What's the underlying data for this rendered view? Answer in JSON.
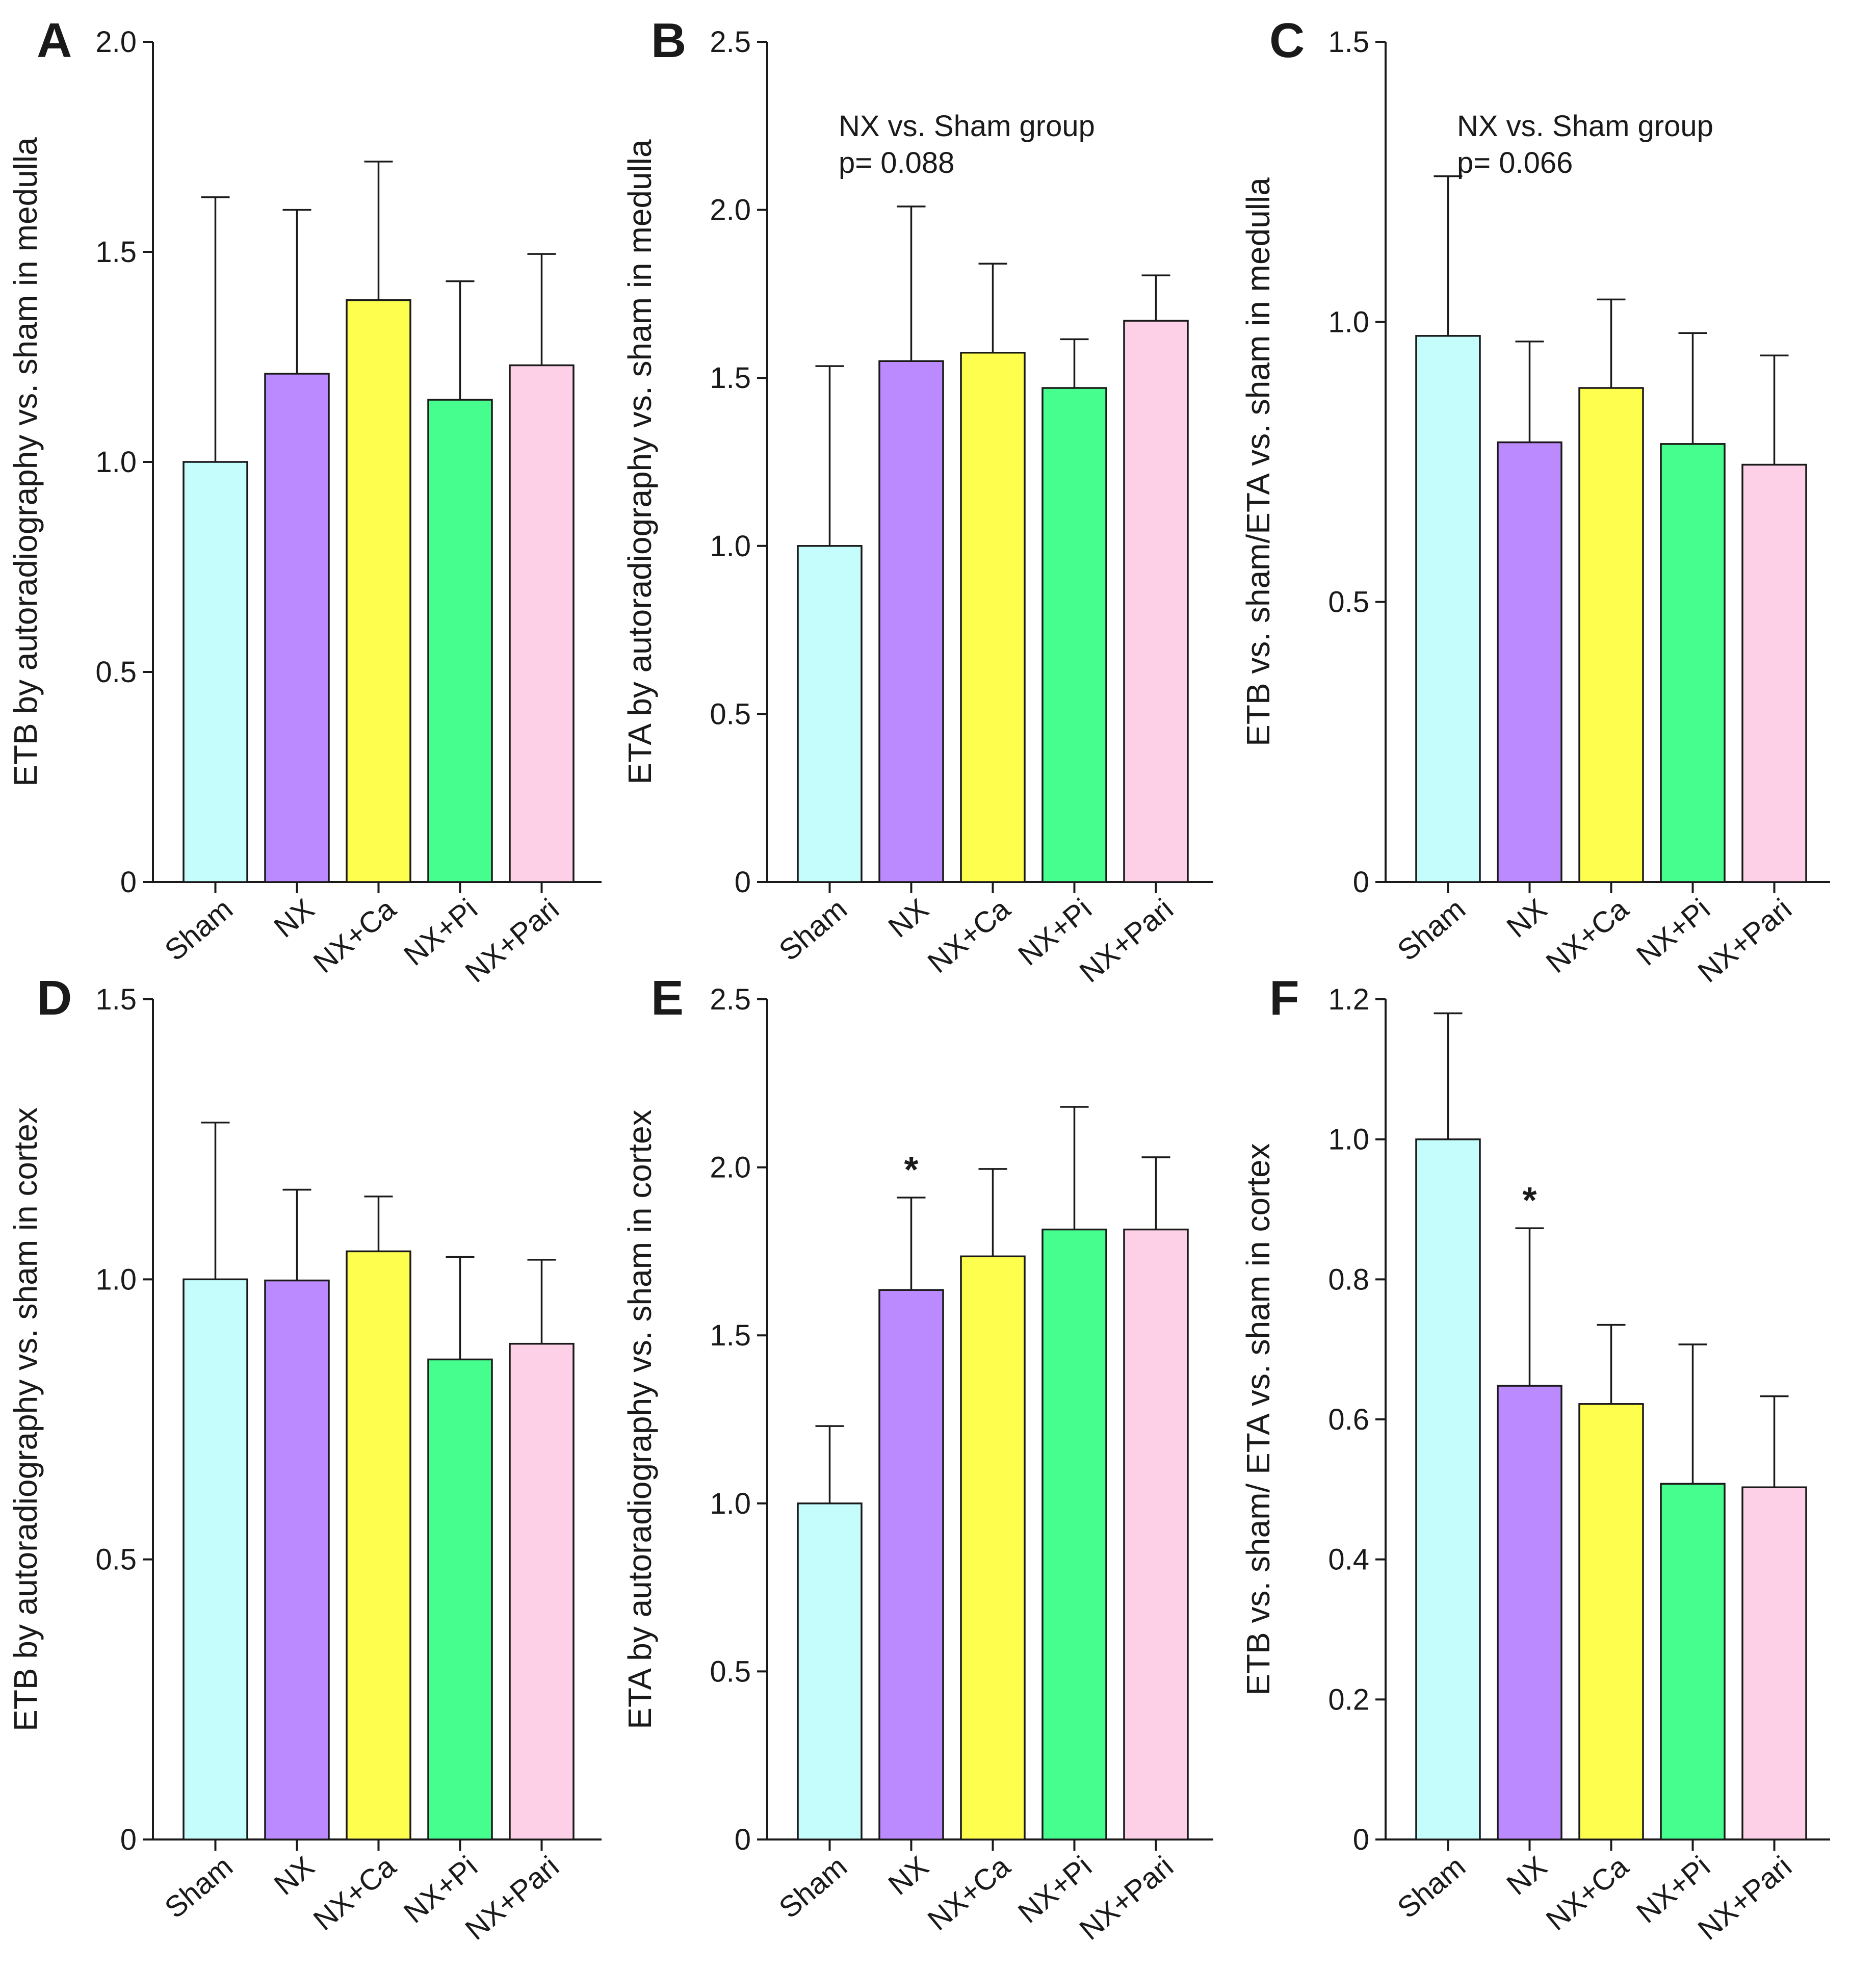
{
  "colors": {
    "Sham": "#c4fdfc",
    "NX": "#bb8afe",
    "NX+Ca": "#fefe4f",
    "NX+Pi": "#45fe8e",
    "NX+Pari": "#fed0e7",
    "axis": "#1a1a1a"
  },
  "chart_data": [
    {
      "id": "A",
      "panel_label": "A",
      "type": "bar",
      "categories": [
        "Sham",
        "NX",
        "NX+Ca",
        "NX+Pi",
        "NX+Pari"
      ],
      "values": [
        1.0,
        1.21,
        1.385,
        1.148,
        1.23
      ],
      "error_upper": [
        1.63,
        1.6,
        1.715,
        1.43,
        1.495
      ],
      "ylabel": "ETB by autoradiography vs. sham in medulla",
      "ylim": [
        0,
        2.0
      ],
      "yticks": [
        0,
        0.5,
        1.0,
        1.5,
        2.0
      ],
      "ytick_labels": [
        "0",
        "0.5",
        "1.0",
        "1.5",
        "2.0"
      ],
      "annotations": [],
      "stars": []
    },
    {
      "id": "B",
      "panel_label": "B",
      "type": "bar",
      "categories": [
        "Sham",
        "NX",
        "NX+Ca",
        "NX+Pi",
        "NX+Pari"
      ],
      "values": [
        1.0,
        1.55,
        1.575,
        1.47,
        1.67
      ],
      "error_upper": [
        1.535,
        2.01,
        1.84,
        1.615,
        1.805
      ],
      "ylabel": "ETA by autoradiography vs. sham in medulla",
      "ylim": [
        0,
        2.5
      ],
      "yticks": [
        0,
        0.5,
        1.0,
        1.5,
        2.0,
        2.5
      ],
      "ytick_labels": [
        "0",
        "0.5",
        "1.0",
        "1.5",
        "2.0",
        "2.5"
      ],
      "annotations": [
        "NX vs. Sham group",
        "p= 0.088"
      ],
      "stars": []
    },
    {
      "id": "C",
      "panel_label": "C",
      "type": "bar",
      "categories": [
        "Sham",
        "NX",
        "NX+Ca",
        "NX+Pi",
        "NX+Pari"
      ],
      "values": [
        0.975,
        0.785,
        0.882,
        0.782,
        0.745
      ],
      "error_upper": [
        1.26,
        0.965,
        1.04,
        0.98,
        0.94
      ],
      "ylabel": "ETB vs. sham/ETA vs. sham in medulla",
      "ylim": [
        0,
        1.5
      ],
      "yticks": [
        0,
        0.5,
        1.0,
        1.5
      ],
      "ytick_labels": [
        "0",
        "0.5",
        "1.0",
        "1.5"
      ],
      "annotations": [
        "NX vs. Sham group",
        "p= 0.066"
      ],
      "stars": []
    },
    {
      "id": "D",
      "panel_label": "D",
      "type": "bar",
      "categories": [
        "Sham",
        "NX",
        "NX+Ca",
        "NX+Pi",
        "NX+Pari"
      ],
      "values": [
        1.0,
        0.998,
        1.05,
        0.857,
        0.885
      ],
      "error_upper": [
        1.28,
        1.16,
        1.148,
        1.04,
        1.035
      ],
      "ylabel": "ETB by autoradiography vs. sham in cortex",
      "ylim": [
        0,
        1.5
      ],
      "yticks": [
        0,
        0.5,
        1.0,
        1.5
      ],
      "ytick_labels": [
        "0",
        "0.5",
        "1.0",
        "1.5"
      ],
      "annotations": [],
      "stars": []
    },
    {
      "id": "E",
      "panel_label": "E",
      "type": "bar",
      "categories": [
        "Sham",
        "NX",
        "NX+Ca",
        "NX+Pi",
        "NX+Pari"
      ],
      "values": [
        1.0,
        1.635,
        1.735,
        1.815,
        1.815
      ],
      "error_upper": [
        1.23,
        1.91,
        1.995,
        2.18,
        2.03
      ],
      "ylabel": "ETA by autoradiography vs. sham in cortex",
      "ylim": [
        0,
        2.5
      ],
      "yticks": [
        0,
        0.5,
        1.0,
        1.5,
        2.0,
        2.5
      ],
      "ytick_labels": [
        "0",
        "0.5",
        "1.0",
        "1.5",
        "2.0",
        "2.5"
      ],
      "annotations": [],
      "stars": [
        {
          "category": "NX",
          "text": "*"
        }
      ]
    },
    {
      "id": "F",
      "panel_label": "F",
      "type": "bar",
      "categories": [
        "Sham",
        "NX",
        "NX+Ca",
        "NX+Pi",
        "NX+Pari"
      ],
      "values": [
        1.0,
        0.648,
        0.622,
        0.508,
        0.503
      ],
      "error_upper": [
        1.18,
        0.873,
        0.735,
        0.707,
        0.633
      ],
      "ylabel": "ETB vs. sham/ ETA vs. sham in cortex",
      "ylim": [
        0,
        1.2
      ],
      "yticks": [
        0,
        0.2,
        0.4,
        0.6,
        0.8,
        1.0,
        1.2
      ],
      "ytick_labels": [
        "0",
        "0.2",
        "0.4",
        "0.6",
        "0.8",
        "1.0",
        "1.2"
      ],
      "annotations": [],
      "stars": [
        {
          "category": "NX",
          "text": "*"
        }
      ]
    }
  ]
}
